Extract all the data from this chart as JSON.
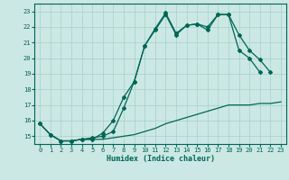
{
  "title": "",
  "xlabel": "Humidex (Indice chaleur)",
  "bg_color": "#cce8e4",
  "grid_color": "#aad4ce",
  "line_color": "#006655",
  "xlim": [
    -0.5,
    23.5
  ],
  "ylim": [
    14.5,
    23.5
  ],
  "yticks": [
    15,
    16,
    17,
    18,
    19,
    20,
    21,
    22,
    23
  ],
  "xticks": [
    0,
    1,
    2,
    3,
    4,
    5,
    6,
    7,
    8,
    9,
    10,
    11,
    12,
    13,
    14,
    15,
    16,
    17,
    18,
    19,
    20,
    21,
    22,
    23
  ],
  "series1_x": [
    0,
    1,
    2,
    3,
    4,
    5,
    6,
    7,
    8,
    9,
    10,
    11,
    12,
    13,
    14,
    15,
    16,
    17,
    18,
    19,
    20,
    21,
    22,
    23
  ],
  "series1_y": [
    15.8,
    15.1,
    14.7,
    14.7,
    14.8,
    14.8,
    14.8,
    14.9,
    15.0,
    15.1,
    15.3,
    15.5,
    15.8,
    16.0,
    16.2,
    16.4,
    16.6,
    16.8,
    17.0,
    17.0,
    17.0,
    17.1,
    17.1,
    17.2
  ],
  "series2_x": [
    0,
    1,
    2,
    3,
    4,
    5,
    6,
    7,
    8,
    9,
    10,
    11,
    12,
    13,
    14,
    15,
    16,
    17,
    18,
    19,
    20,
    21,
    22,
    23
  ],
  "series2_y": [
    15.8,
    15.1,
    14.7,
    14.7,
    14.8,
    14.8,
    15.2,
    16.0,
    17.5,
    18.5,
    20.8,
    21.8,
    22.8,
    21.5,
    22.1,
    22.2,
    22.0,
    22.8,
    22.8,
    20.5,
    20.0,
    19.1,
    null,
    null
  ],
  "series3_x": [
    0,
    1,
    2,
    3,
    4,
    5,
    6,
    7,
    8,
    9,
    10,
    11,
    12,
    13,
    14,
    15,
    16,
    17,
    18,
    19,
    20,
    21,
    22,
    23
  ],
  "series3_y": [
    15.8,
    15.1,
    14.7,
    14.7,
    14.8,
    14.9,
    15.0,
    15.3,
    16.8,
    18.5,
    20.8,
    21.9,
    22.9,
    21.6,
    22.1,
    22.2,
    21.8,
    22.8,
    22.8,
    21.5,
    20.5,
    19.9,
    19.1,
    null
  ]
}
